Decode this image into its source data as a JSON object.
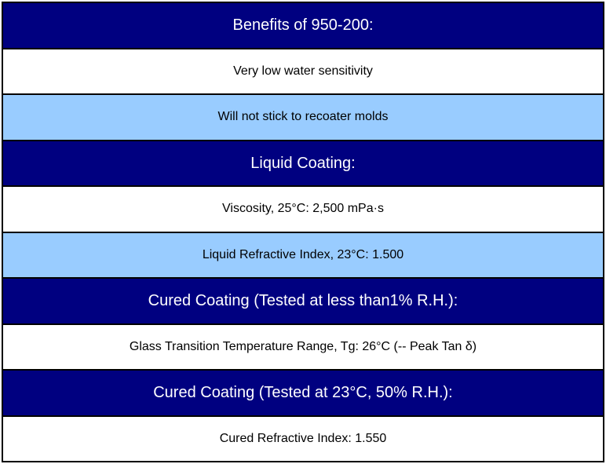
{
  "colors": {
    "header_bg": "#000080",
    "alt_bg": "#99CCFF",
    "row_bg": "#FFFFFF",
    "border": "#000000",
    "header_text": "#FFFFFF",
    "body_text": "#000000"
  },
  "table": {
    "rows": [
      {
        "text": "Benefits of 950-200:",
        "variant": "header"
      },
      {
        "text": "Very low water sensitivity",
        "variant": "white"
      },
      {
        "text": "Will not stick to recoater molds",
        "variant": "blue"
      },
      {
        "text": "Liquid Coating:",
        "variant": "header"
      },
      {
        "text": "Viscosity, 25°C: 2,500 mPa·s",
        "variant": "white"
      },
      {
        "text": "Liquid Refractive Index, 23°C: 1.500",
        "variant": "blue"
      },
      {
        "text": "Cured Coating (Tested at less than1% R.H.):",
        "variant": "header"
      },
      {
        "text": "Glass Transition Temperature Range, Tg: 26°C (-- Peak Tan δ)",
        "variant": "white"
      },
      {
        "text": "Cured Coating (Tested at 23°C, 50% R.H.):",
        "variant": "header"
      },
      {
        "text": "Cured Refractive Index: 1.550",
        "variant": "white"
      }
    ]
  }
}
